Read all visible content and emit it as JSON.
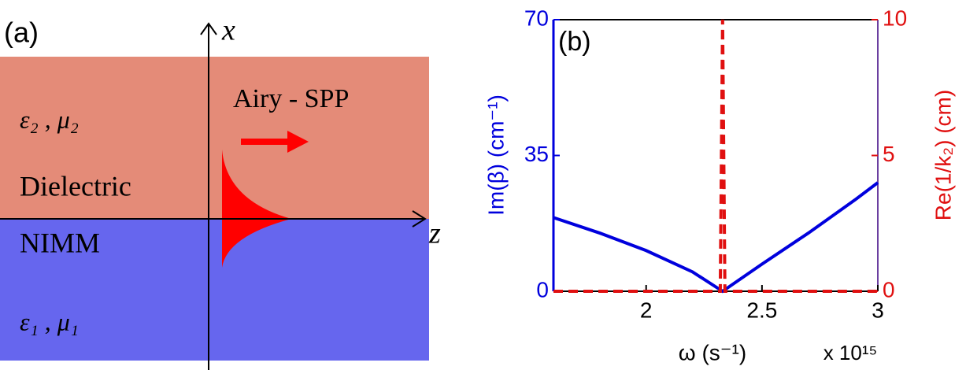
{
  "diagram": {
    "panel_label": "(a)",
    "x_axis_label": "x",
    "z_axis_label": "z",
    "upper_params": "ε₂ , μ₂",
    "upper_medium": "Dielectric",
    "lower_medium": "NIMM",
    "lower_params": "ε₁ , μ₁",
    "beam_label": "Airy - SPP"
  },
  "chart_data": {
    "type": "line",
    "panel_label": "(b)",
    "x_label": "ω  (s⁻¹)",
    "x_multiplier": "x 10¹⁵",
    "y_label": "Im(β) (cm⁻¹)",
    "y2_label": "Re(1/k₂) (cm)",
    "xlim": [
      1.6,
      3
    ],
    "xticks": [
      2,
      2.5,
      3
    ],
    "ylim": [
      0,
      70
    ],
    "yticks": [
      0,
      35,
      70
    ],
    "y2lim": [
      0,
      10
    ],
    "y2ticks": [
      0,
      5,
      10
    ],
    "series": [
      {
        "name": "Im(β)",
        "color": "#0000dd",
        "x": [
          1.6,
          1.8,
          2.0,
          2.2,
          2.33,
          2.5,
          2.7,
          2.9,
          3.0
        ],
        "values": [
          19,
          15,
          10.5,
          5,
          0,
          7,
          15,
          23.5,
          28
        ]
      },
      {
        "name": "Re(1/k₂)",
        "color": "#e01010",
        "axis": "y2",
        "dashed": true,
        "x": [
          1.6,
          2.32,
          2.33,
          2.34,
          3.0
        ],
        "values": [
          0,
          0,
          10,
          0,
          0
        ]
      }
    ]
  }
}
